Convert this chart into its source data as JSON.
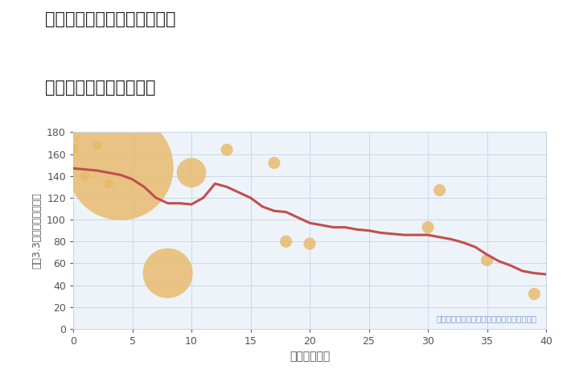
{
  "title_line1": "兵庫県西宮市甲子園七番町の",
  "title_line2": "築年数別中古戸建て価格",
  "xlabel": "築年数（年）",
  "ylabel": "坪（3.3㎡）単価（万円）",
  "annotation": "円の大きさは、取引のあった物件面積を示す",
  "bg_color": "#eef3fa",
  "line_color": "#c0504d",
  "scatter_color": "#e8b866",
  "scatter_alpha": 0.8,
  "xlim": [
    0,
    40
  ],
  "ylim": [
    0,
    180
  ],
  "xticks": [
    0,
    5,
    10,
    15,
    20,
    25,
    30,
    35,
    40
  ],
  "yticks": [
    0,
    20,
    40,
    60,
    80,
    100,
    120,
    140,
    160,
    180
  ],
  "line_x": [
    0,
    1,
    2,
    3,
    4,
    5,
    6,
    7,
    8,
    9,
    10,
    11,
    12,
    13,
    14,
    15,
    16,
    17,
    18,
    19,
    20,
    21,
    22,
    23,
    24,
    25,
    26,
    27,
    28,
    29,
    30,
    31,
    32,
    33,
    34,
    35,
    36,
    37,
    38,
    39,
    40
  ],
  "line_y": [
    147,
    146,
    145,
    143,
    141,
    137,
    130,
    120,
    115,
    115,
    114,
    120,
    133,
    130,
    125,
    120,
    112,
    108,
    107,
    102,
    97,
    95,
    93,
    93,
    91,
    90,
    88,
    87,
    86,
    86,
    86,
    84,
    82,
    79,
    75,
    68,
    62,
    58,
    53,
    51,
    50
  ],
  "scatter_x": [
    0,
    0,
    1,
    2,
    3,
    4,
    8,
    10,
    13,
    17,
    18,
    20,
    30,
    31,
    35,
    39
  ],
  "scatter_y": [
    178,
    165,
    140,
    168,
    133,
    148,
    51,
    143,
    164,
    152,
    80,
    78,
    93,
    127,
    63,
    32
  ],
  "scatter_size": [
    150,
    80,
    70,
    70,
    70,
    9000,
    2000,
    700,
    120,
    120,
    120,
    120,
    120,
    120,
    120,
    120
  ]
}
